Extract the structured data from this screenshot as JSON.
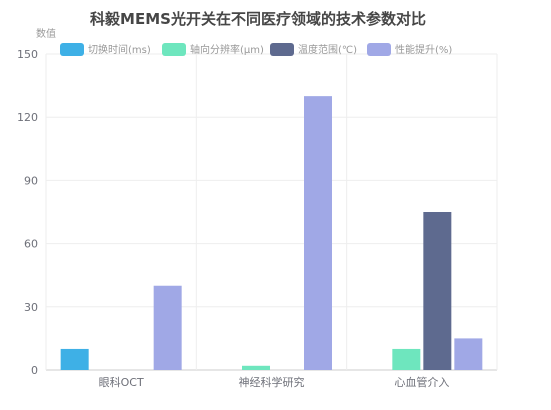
{
  "chart_data": {
    "type": "bar",
    "title": "科毅MEMS光开关在不同医疗领域的技术参数对比",
    "ylabel": "数值",
    "xlabel": "",
    "ylim": [
      0,
      150
    ],
    "yticks": [
      0,
      30,
      60,
      90,
      120,
      150
    ],
    "grid": true,
    "legend_position": "top",
    "categories": [
      "眼科OCT",
      "神经科学研究",
      "心血管介入"
    ],
    "series": [
      {
        "name": "切换时间(ms)",
        "color": "#3eb0e6",
        "values": [
          10,
          0,
          0
        ]
      },
      {
        "name": "轴向分辨率(μm)",
        "color": "#6ee6be",
        "values": [
          0,
          2,
          10
        ]
      },
      {
        "name": "温度范围(℃)",
        "color": "#5e6a8f",
        "values": [
          0,
          0,
          75
        ]
      },
      {
        "name": "性能提升(%)",
        "color": "#a0a8e6",
        "values": [
          40,
          130,
          15
        ]
      }
    ]
  }
}
